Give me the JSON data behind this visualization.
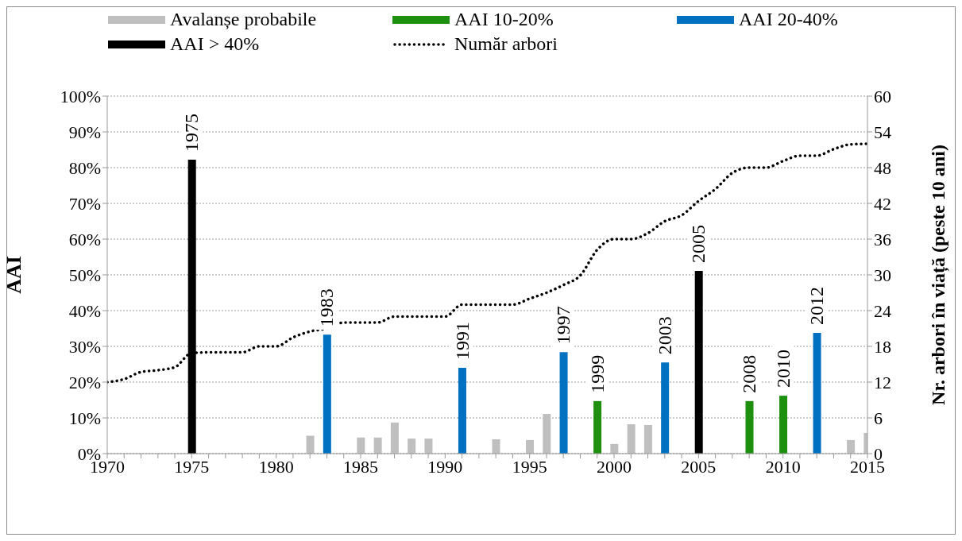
{
  "chart_data": {
    "type": "bar",
    "stacked": true,
    "grid": "y",
    "legend": "top",
    "line_style": "dotted",
    "ylabel": "AAI",
    "y2label": "Nr. arbori în viață (peste 10 ani)",
    "x": [
      1970,
      1971,
      1972,
      1973,
      1974,
      1975,
      1976,
      1977,
      1978,
      1979,
      1980,
      1981,
      1982,
      1983,
      1984,
      1985,
      1986,
      1987,
      1988,
      1989,
      1990,
      1991,
      1992,
      1993,
      1994,
      1995,
      1996,
      1997,
      1998,
      1999,
      2000,
      2001,
      2002,
      2003,
      2004,
      2005,
      2006,
      2007,
      2008,
      2009,
      2010,
      2011,
      2012,
      2013,
      2014,
      2015
    ],
    "xlim": [
      1970,
      2015
    ],
    "xticks": [
      1970,
      {
        "value": 1971,
        "label": null
      },
      {
        "value": 1972,
        "label": null
      },
      {
        "value": 1973,
        "label": null
      },
      {
        "value": 1974,
        "label": null
      },
      1975,
      {
        "value": 1976,
        "label": null
      },
      {
        "value": 1977,
        "label": null
      },
      {
        "value": 1978,
        "label": null
      },
      {
        "value": 1979,
        "label": null
      },
      1980,
      {
        "value": 1981,
        "label": null
      },
      {
        "value": 1982,
        "label": null
      },
      {
        "value": 1983,
        "label": null
      },
      {
        "value": 1984,
        "label": null
      },
      1985,
      {
        "value": 1986,
        "label": null
      },
      {
        "value": 1987,
        "label": null
      },
      {
        "value": 1988,
        "label": null
      },
      {
        "value": 1989,
        "label": null
      },
      1990,
      {
        "value": 1991,
        "label": null
      },
      {
        "value": 1992,
        "label": null
      },
      {
        "value": 1993,
        "label": null
      },
      {
        "value": 1994,
        "label": null
      },
      1995,
      {
        "value": 1996,
        "label": null
      },
      {
        "value": 1997,
        "label": null
      },
      {
        "value": 1998,
        "label": null
      },
      {
        "value": 1999,
        "label": null
      },
      2000,
      {
        "value": 2001,
        "label": null
      },
      {
        "value": 2002,
        "label": null
      },
      {
        "value": 2003,
        "label": null
      },
      {
        "value": 2004,
        "label": null
      },
      2005,
      {
        "value": 2006,
        "label": null
      },
      {
        "value": 2007,
        "label": null
      },
      {
        "value": 2008,
        "label": null
      },
      {
        "value": 2009,
        "label": null
      },
      2010,
      {
        "value": 2011,
        "label": null
      },
      {
        "value": 2012,
        "label": null
      },
      {
        "value": 2013,
        "label": null
      },
      {
        "value": 2014,
        "label": null
      },
      2015
    ],
    "ylim": [
      0,
      100
    ],
    "yticks": [
      {
        "value": 0,
        "label": "0%"
      },
      {
        "value": 10,
        "label": "10%"
      },
      {
        "value": 20,
        "label": "20%"
      },
      {
        "value": 30,
        "label": "30%"
      },
      {
        "value": 40,
        "label": "40%"
      },
      {
        "value": 50,
        "label": "50%"
      },
      {
        "value": 60,
        "label": "60%"
      },
      {
        "value": 70,
        "label": "70%"
      },
      {
        "value": 80,
        "label": "80%"
      },
      {
        "value": 90,
        "label": "90%"
      },
      {
        "value": 100,
        "label": "100%"
      }
    ],
    "y2lim": [
      0,
      60
    ],
    "y2ticks": [
      0,
      6,
      12,
      18,
      24,
      30,
      36,
      42,
      48,
      54,
      60
    ],
    "series": [
      {
        "name": "Avalanșe probabile",
        "color": "#bfbfbf",
        "values": [
          null,
          null,
          null,
          null,
          null,
          null,
          null,
          null,
          null,
          null,
          null,
          null,
          5,
          null,
          null,
          4.5,
          4.5,
          8.7,
          4.2,
          4.2,
          null,
          null,
          null,
          4,
          null,
          3.8,
          11.1,
          null,
          null,
          null,
          2.7,
          8.2,
          8,
          null,
          null,
          null,
          null,
          null,
          null,
          null,
          null,
          null,
          null,
          null,
          3.8,
          5.8
        ]
      },
      {
        "name": "AAI 10-20%",
        "color": "#1f8f0f",
        "values": [
          null,
          null,
          null,
          null,
          null,
          null,
          null,
          null,
          null,
          null,
          null,
          null,
          null,
          null,
          null,
          null,
          null,
          null,
          null,
          null,
          null,
          null,
          null,
          null,
          null,
          null,
          null,
          null,
          null,
          14.7,
          null,
          null,
          null,
          null,
          null,
          null,
          null,
          null,
          14.7,
          null,
          16.2,
          null,
          null,
          null,
          null,
          null
        ]
      },
      {
        "name": "AAI 20-40%",
        "color": "#0070c0",
        "values": [
          null,
          null,
          null,
          null,
          null,
          null,
          null,
          null,
          null,
          null,
          null,
          null,
          null,
          33.3,
          null,
          null,
          null,
          null,
          null,
          null,
          null,
          24,
          null,
          null,
          null,
          null,
          null,
          28.4,
          null,
          null,
          null,
          null,
          null,
          25.5,
          null,
          null,
          null,
          null,
          null,
          null,
          null,
          null,
          33.8,
          null,
          null,
          null
        ]
      },
      {
        "name": "AAI > 40%",
        "color": "#000000",
        "values": [
          null,
          null,
          null,
          null,
          null,
          82.2,
          null,
          null,
          null,
          null,
          null,
          null,
          null,
          null,
          null,
          null,
          null,
          null,
          null,
          null,
          null,
          null,
          null,
          null,
          null,
          null,
          null,
          null,
          null,
          null,
          null,
          null,
          null,
          null,
          null,
          51.1,
          null,
          null,
          null,
          null,
          null,
          null,
          null,
          null,
          null,
          null
        ]
      },
      {
        "name": "Număr arbori",
        "type": "line",
        "axis": "y2",
        "color": "#000000",
        "values": [
          12,
          12.5,
          13.7,
          14,
          14.5,
          16.9,
          17,
          17,
          17,
          18,
          18,
          19.5,
          20.5,
          21,
          22,
          22,
          22,
          23,
          23,
          23,
          23,
          25,
          25,
          25,
          25,
          26,
          27,
          28.3,
          29.9,
          34.2,
          36,
          36,
          37,
          39,
          40,
          42.4,
          44.4,
          47.1,
          48,
          48,
          49.1,
          50,
          50,
          51.1,
          51.9,
          52
        ]
      }
    ],
    "annotations": [
      {
        "text": "1975",
        "x": 1975,
        "y": 82.2
      },
      {
        "text": "1983",
        "x": 1983,
        "y": 33.3
      },
      {
        "text": "1991",
        "x": 1991,
        "y": 24
      },
      {
        "text": "1997",
        "x": 1997,
        "y": 28.4
      },
      {
        "text": "1999",
        "x": 1999,
        "y": 14.7
      },
      {
        "text": "2003",
        "x": 2003,
        "y": 25.5
      },
      {
        "text": "2005",
        "x": 2005,
        "y": 51.1
      },
      {
        "text": "2008",
        "x": 2008,
        "y": 14.7
      },
      {
        "text": "2010",
        "x": 2010,
        "y": 16.2
      },
      {
        "text": "2012",
        "x": 2012,
        "y": 33.8
      }
    ]
  }
}
